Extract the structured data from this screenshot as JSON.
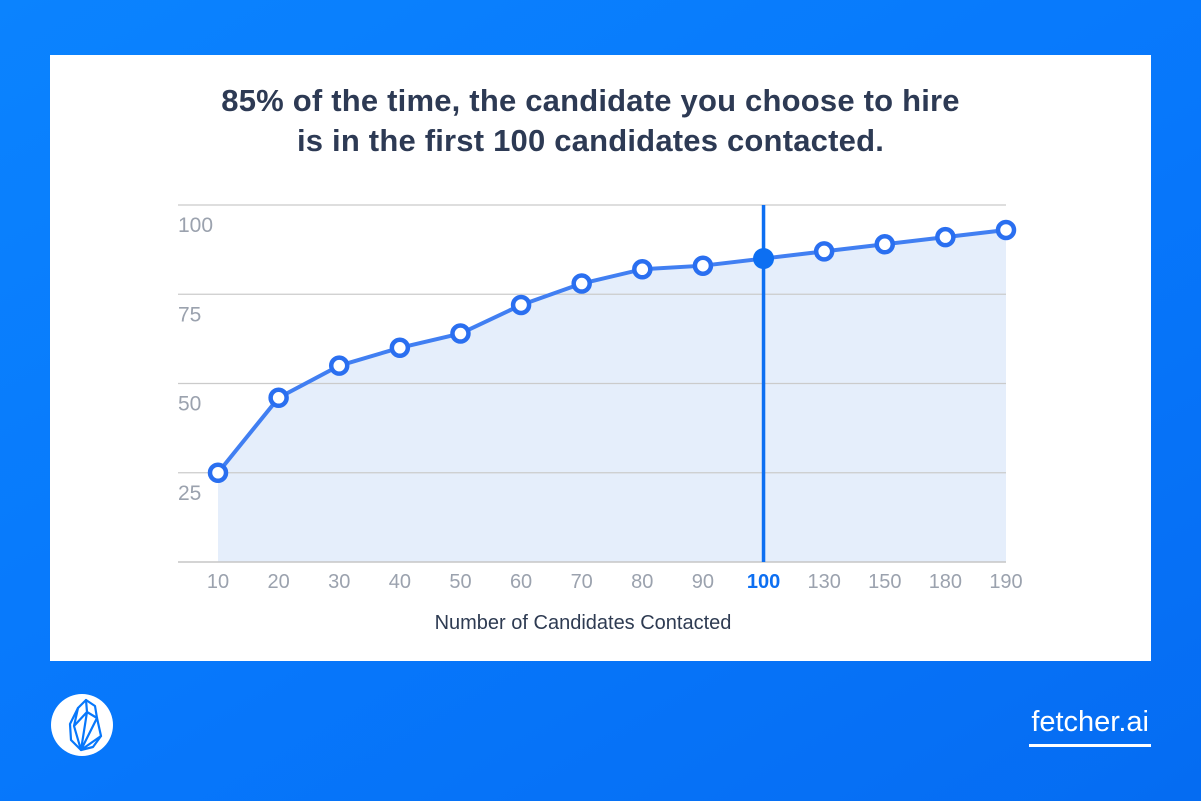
{
  "title": {
    "line1": "85% of the time, the candidate you choose to hire",
    "line2": "is in the first 100 candidates contacted."
  },
  "chart_data": {
    "type": "area",
    "categories": [
      "10",
      "20",
      "30",
      "40",
      "50",
      "60",
      "70",
      "80",
      "90",
      "100",
      "130",
      "150",
      "180",
      "190"
    ],
    "values": [
      25,
      46,
      55,
      60,
      64,
      72,
      78,
      82,
      83,
      85,
      87,
      89,
      91,
      93
    ],
    "title": "",
    "xlabel": "Number of Candidates Contacted",
    "ylabel": "",
    "yticks": [
      25,
      50,
      75,
      100
    ],
    "ylim": [
      0,
      100
    ],
    "grid": "on",
    "legend": "none",
    "highlight": {
      "category": "100",
      "value": 85
    }
  },
  "footer": {
    "brand": "fetcher.ai",
    "logo": "fetcher-dog-logo"
  },
  "colors": {
    "background": "#0777FB",
    "card": "#FFFFFF",
    "title_text": "#2D3A54",
    "line": "#417FF2",
    "marker_stroke": "#2A6FF0",
    "accent": "#0D6FF2",
    "area_fill": "#E5EEFB",
    "gridline": "#CBCBCB",
    "axis_line": "#C6C6C6",
    "tick_text": "#9BA2AE",
    "axis_title_text": "#2E3B52"
  }
}
